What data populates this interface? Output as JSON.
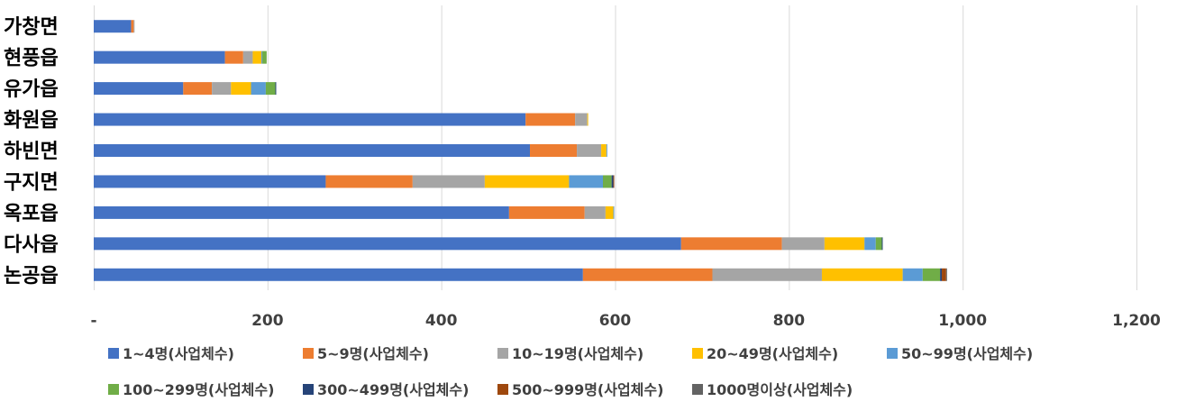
{
  "chart_data": {
    "type": "bar",
    "orientation": "horizontal",
    "stacked": true,
    "title": "",
    "xlabel": "",
    "ylabel": "",
    "xlim": [
      0,
      1200
    ],
    "x_ticks": [
      0,
      200,
      400,
      600,
      800,
      1000,
      1200
    ],
    "x_tick_labels": [
      "-",
      "200",
      "400",
      "600",
      "800",
      "1,000",
      "1,200"
    ],
    "grid": true,
    "legend_position": "bottom",
    "categories": [
      "가창면",
      "현풍읍",
      "유가읍",
      "화원읍",
      "하빈면",
      "구지면",
      "옥포읍",
      "다사읍",
      "논공읍"
    ],
    "series": [
      {
        "name": "1~4명(사업체수)",
        "color": "#4472C4",
        "values": [
          43,
          151,
          103,
          497,
          502,
          267,
          478,
          676,
          563
        ]
      },
      {
        "name": "5~9명(사업체수)",
        "color": "#ED7D31",
        "values": [
          3,
          21,
          33,
          57,
          54,
          100,
          87,
          116,
          149
        ]
      },
      {
        "name": "10~19명(사업체수)",
        "color": "#A5A5A5",
        "values": [
          1,
          11,
          22,
          14,
          28,
          83,
          24,
          49,
          126
        ]
      },
      {
        "name": "20~49명(사업체수)",
        "color": "#FFC000",
        "values": [
          0,
          10,
          23,
          1,
          6,
          97,
          9,
          46,
          93
        ]
      },
      {
        "name": "50~99명(사업체수)",
        "color": "#5B9BD5",
        "values": [
          0,
          1,
          17,
          0,
          1,
          39,
          1,
          13,
          23
        ]
      },
      {
        "name": "100~299명(사업체수)",
        "color": "#70AD47",
        "values": [
          0,
          5,
          11,
          0,
          0,
          10,
          0,
          7,
          20
        ]
      },
      {
        "name": "300~499명(사업체수)",
        "color": "#264478",
        "values": [
          0,
          0,
          1,
          0,
          0,
          2,
          0,
          1,
          2
        ]
      },
      {
        "name": "500~999명(사업체수)",
        "color": "#9E480E",
        "values": [
          0,
          0,
          0,
          0,
          0,
          1,
          0,
          0,
          5
        ]
      },
      {
        "name": "1000명이상(사업체수)",
        "color": "#636363",
        "values": [
          0,
          0,
          0,
          0,
          0,
          0,
          0,
          0,
          1
        ]
      }
    ]
  }
}
